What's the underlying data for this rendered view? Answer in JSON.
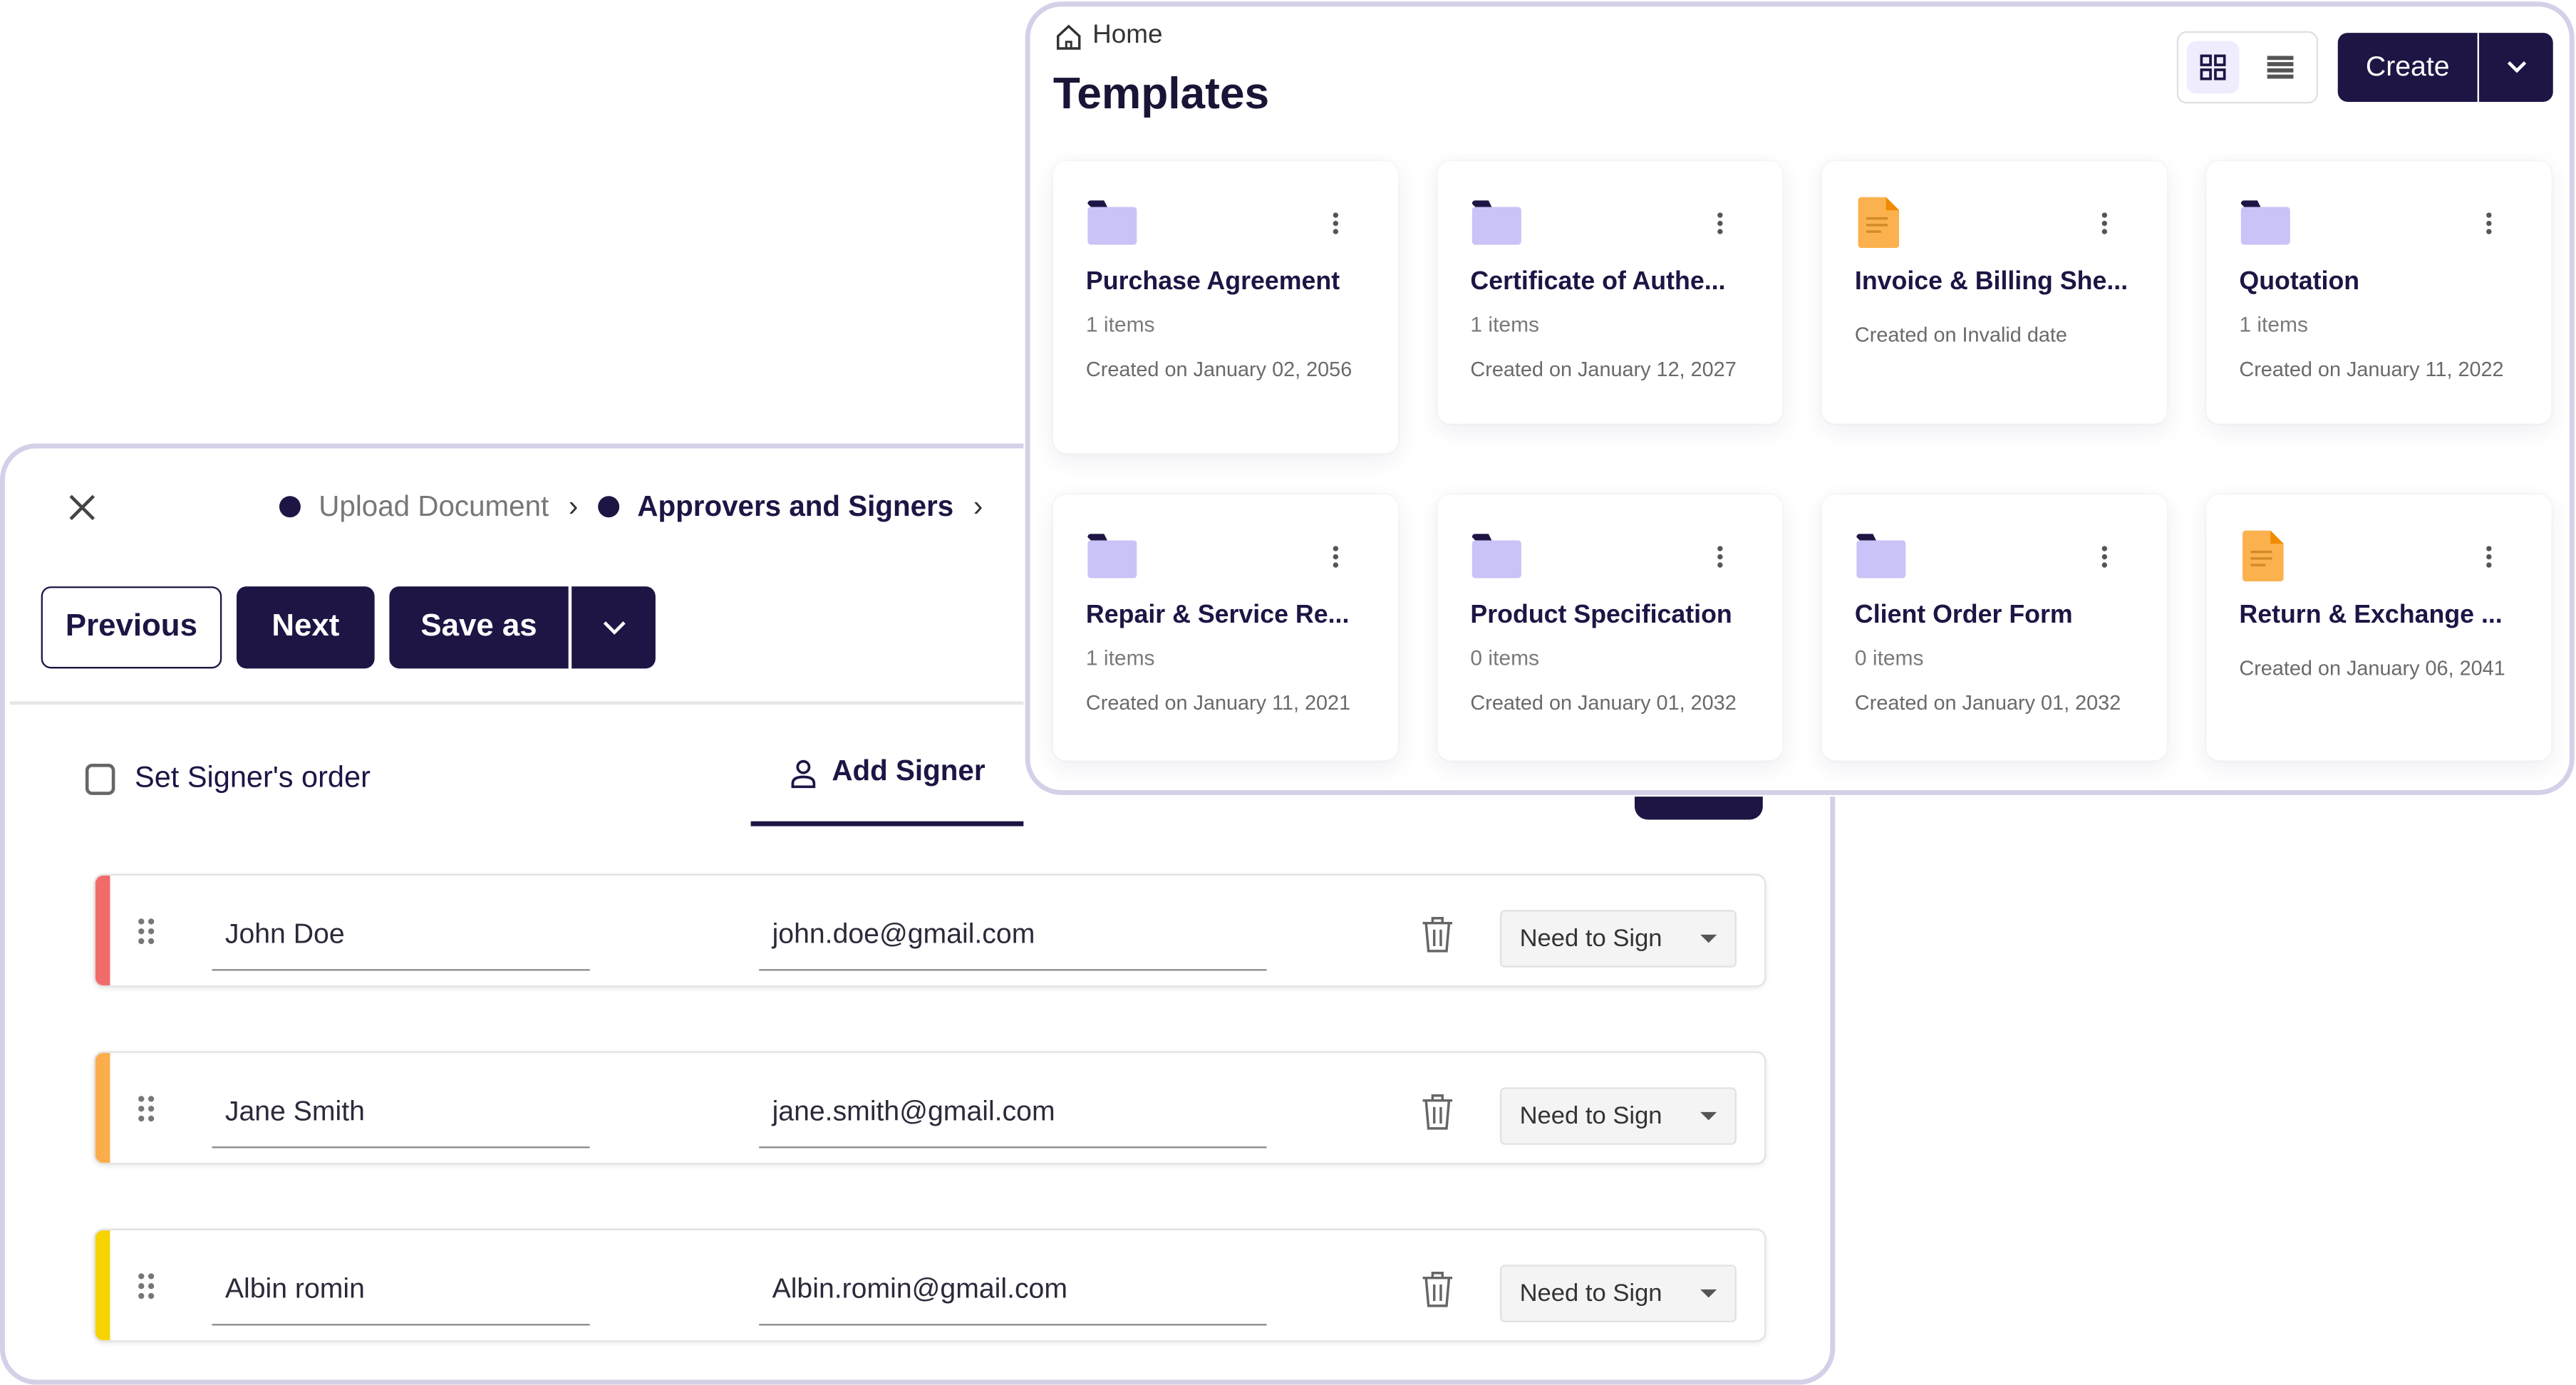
{
  "signer_panel": {
    "breadcrumb": [
      {
        "label": "Upload Document",
        "active": false
      },
      {
        "label": "Approvers and Signers",
        "active": true
      }
    ],
    "buttons": {
      "previous": "Previous",
      "next": "Next",
      "save_as": "Save as"
    },
    "set_order_label": "Set Signer's order",
    "set_order_checked": false,
    "add_signer_label": "Add Signer",
    "signers": [
      {
        "name": "John Doe",
        "email": "john.doe@gmail.com",
        "role": "Need to Sign",
        "color": "#f26b6b"
      },
      {
        "name": "Jane Smith",
        "email": "jane.smith@gmail.com",
        "role": "Need to Sign",
        "color": "#fbad4c"
      },
      {
        "name": "Albin romin",
        "email": "Albin.romin@gmail.com",
        "role": "Need to Sign",
        "color": "#f7d300"
      }
    ]
  },
  "templates_panel": {
    "breadcrumb_home": "Home",
    "title": "Templates",
    "view_mode": "grid",
    "create_label": "Create",
    "cards": [
      {
        "title": "Purchase Agreement",
        "items": "1 items",
        "created": "Created on January 02, 2056",
        "icon": "folder-icon"
      },
      {
        "title": "Certificate of Authe...",
        "items": "1 items",
        "created": "Created on January 12, 2027",
        "icon": "folder-icon"
      },
      {
        "title": "Invoice & Billing She...",
        "items": "",
        "created": "Created on Invalid date",
        "icon": "document-icon"
      },
      {
        "title": "Quotation",
        "items": "1 items",
        "created": "Created on January 11, 2022",
        "icon": "folder-icon"
      },
      {
        "title": "Repair & Service Re...",
        "items": "1 items",
        "created": "Created on January 11, 2021",
        "icon": "folder-icon"
      },
      {
        "title": "Product Specification",
        "items": "0 items",
        "created": "Created on January 01, 2032",
        "icon": "folder-icon"
      },
      {
        "title": "Client Order Form",
        "items": "0 items",
        "created": "Created on January 01, 2032",
        "icon": "folder-icon"
      },
      {
        "title": "Return & Exchange ...",
        "items": "",
        "created": "Created on January 06, 2041",
        "icon": "document-icon"
      }
    ]
  },
  "colors": {
    "primary": "#1e1545",
    "panel_border": "#d4d0e8",
    "folder": "#c9c3f7",
    "document": "#fbb24e"
  }
}
